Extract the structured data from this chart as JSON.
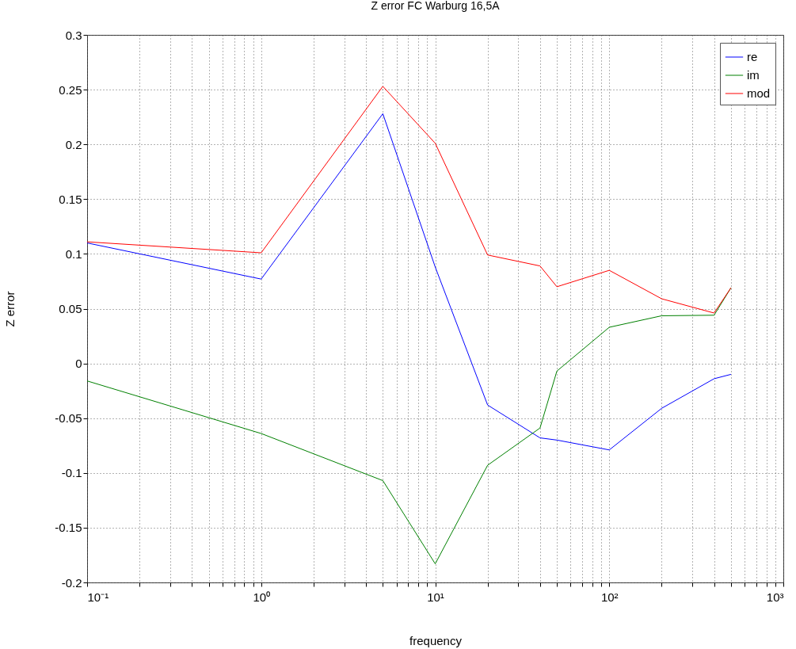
{
  "chart_data": {
    "type": "line",
    "title": "Z error FC Warburg 16,5A",
    "xlabel": "frequency",
    "ylabel": "Z error",
    "x": [
      0.1,
      1,
      5,
      10,
      20,
      40,
      50,
      100,
      200,
      400,
      500
    ],
    "series": [
      {
        "name": "re",
        "color": "#0000ff",
        "values": [
          0.11,
          0.077,
          0.228,
          0.088,
          -0.038,
          -0.068,
          -0.07,
          -0.079,
          -0.041,
          -0.014,
          -0.01
        ]
      },
      {
        "name": "im",
        "color": "#008000",
        "values": [
          -0.016,
          -0.064,
          -0.107,
          -0.183,
          -0.093,
          -0.059,
          -0.007,
          0.033,
          0.0435,
          0.044,
          0.069
        ]
      },
      {
        "name": "mod",
        "color": "#ff0000",
        "values": [
          0.111,
          0.101,
          0.253,
          0.201,
          0.099,
          0.089,
          0.07,
          0.085,
          0.059,
          0.046,
          0.069
        ]
      }
    ],
    "log": "x",
    "xlim": [
      0.1,
      1000
    ],
    "xticks": [
      {
        "value": 0.1,
        "label": "10⁻¹"
      },
      {
        "value": 0.2,
        "label": null
      },
      {
        "value": 0.3,
        "label": null
      },
      {
        "value": 0.4,
        "label": null
      },
      {
        "value": 0.5,
        "label": null
      },
      {
        "value": 0.6,
        "label": null
      },
      {
        "value": 0.7,
        "label": null
      },
      {
        "value": 0.8,
        "label": null
      },
      {
        "value": 0.9,
        "label": null
      },
      {
        "value": 1,
        "label": "10⁰"
      },
      {
        "value": 2,
        "label": null
      },
      {
        "value": 3,
        "label": null
      },
      {
        "value": 4,
        "label": null
      },
      {
        "value": 5,
        "label": null
      },
      {
        "value": 6,
        "label": null
      },
      {
        "value": 7,
        "label": null
      },
      {
        "value": 8,
        "label": null
      },
      {
        "value": 9,
        "label": null
      },
      {
        "value": 10,
        "label": "10¹"
      },
      {
        "value": 20,
        "label": null
      },
      {
        "value": 30,
        "label": null
      },
      {
        "value": 40,
        "label": null
      },
      {
        "value": 50,
        "label": null
      },
      {
        "value": 60,
        "label": null
      },
      {
        "value": 70,
        "label": null
      },
      {
        "value": 80,
        "label": null
      },
      {
        "value": 90,
        "label": null
      },
      {
        "value": 100,
        "label": "10²"
      },
      {
        "value": 200,
        "label": null
      },
      {
        "value": 300,
        "label": null
      },
      {
        "value": 400,
        "label": null
      },
      {
        "value": 500,
        "label": null
      },
      {
        "value": 600,
        "label": null
      },
      {
        "value": 700,
        "label": null
      },
      {
        "value": 800,
        "label": null
      },
      {
        "value": 900,
        "label": null
      },
      {
        "value": 1000,
        "label": "10³"
      }
    ],
    "ylim": [
      -0.2,
      0.3
    ],
    "yticks": [
      -0.2,
      -0.15,
      -0.1,
      -0.05,
      0,
      0.05,
      0.1,
      0.15,
      0.2,
      0.25,
      0.3
    ],
    "grid": true,
    "legend": "top right"
  }
}
